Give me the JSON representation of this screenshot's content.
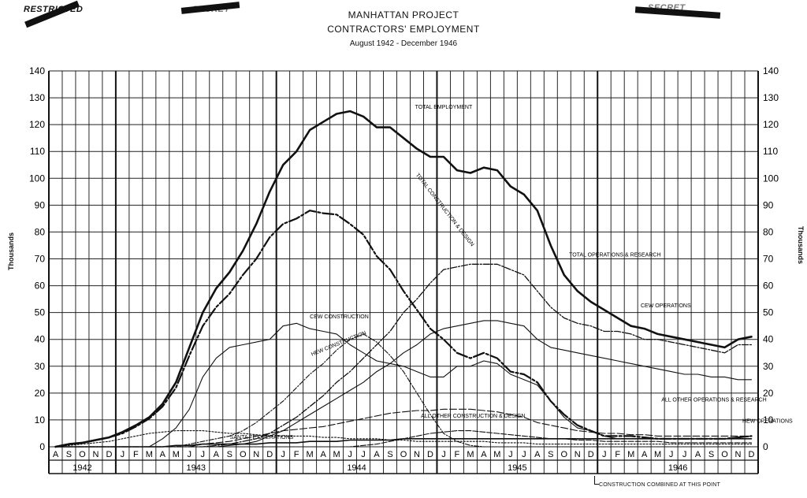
{
  "stamps": {
    "restricted": "RESTRICTED",
    "secret_mid": "SECRET",
    "secret_right": "SECRET"
  },
  "note": "CONSTRUCTION COMBINED AT THIS POINT",
  "chart_data": {
    "type": "line",
    "title": "MANHATTAN PROJECT",
    "subtitle": "CONTRACTORS' EMPLOYMENT",
    "period": "August 1942 - December 1946",
    "ylabel": "Thousands",
    "xlabel": "",
    "ylim": [
      0,
      140
    ],
    "yticks": [
      0,
      10,
      20,
      30,
      40,
      50,
      60,
      70,
      80,
      90,
      100,
      110,
      120,
      130,
      140
    ],
    "grid": true,
    "month_labels": [
      "A",
      "S",
      "O",
      "N",
      "D",
      "J",
      "F",
      "M",
      "A",
      "M",
      "J",
      "J",
      "A",
      "S",
      "O",
      "N",
      "D",
      "J",
      "F",
      "M",
      "A",
      "M",
      "J",
      "J",
      "A",
      "S",
      "O",
      "N",
      "D",
      "J",
      "F",
      "M",
      "A",
      "M",
      "J",
      "J",
      "A",
      "S",
      "O",
      "N",
      "D",
      "J",
      "F",
      "M",
      "A",
      "M",
      "J",
      "J",
      "A",
      "S",
      "O",
      "N",
      "D"
    ],
    "years": [
      {
        "label": "1942",
        "months": 5
      },
      {
        "label": "1943",
        "months": 12
      },
      {
        "label": "1944",
        "months": 12
      },
      {
        "label": "1945",
        "months": 12
      },
      {
        "label": "1946",
        "months": 12
      }
    ],
    "series": [
      {
        "name": "TOTAL EMPLOYMENT",
        "label_at": [
          14.5,
          125
        ],
        "values": [
          0,
          1,
          1.5,
          2.5,
          3.5,
          5.5,
          8,
          11,
          16,
          24,
          37,
          50,
          59,
          65,
          73,
          83,
          95,
          105,
          110,
          118,
          121,
          124,
          125,
          123,
          119,
          119,
          115,
          111,
          108,
          108,
          103,
          102,
          104,
          103,
          97,
          94,
          88,
          75,
          64,
          58,
          54,
          51,
          48,
          45,
          44,
          42,
          41,
          40,
          39,
          38,
          37,
          40,
          41
        ]
      },
      {
        "name": "TOTAL CONSTRUCTION & DESIGN",
        "label_at": [
          14.5,
          87
        ],
        "rotate": 52,
        "values": [
          0,
          1,
          1.5,
          2.5,
          3.5,
          5,
          7.5,
          10.5,
          15,
          22,
          34,
          45,
          52,
          57,
          64,
          70,
          78,
          83,
          85,
          88,
          87,
          86.5,
          83,
          79,
          71,
          66,
          58,
          51,
          44,
          40,
          35,
          33,
          35,
          33,
          28,
          27,
          24,
          17,
          12,
          8,
          6,
          4,
          4,
          4,
          3.5,
          3,
          3,
          3,
          3,
          3,
          3,
          3.5,
          4
        ]
      },
      {
        "name": "TOTAL OPERATIONS & RESEARCH",
        "label_at": [
          20.9,
          70
        ],
        "values": [
          0,
          0,
          0,
          0,
          0,
          0,
          0,
          0,
          0,
          0,
          0,
          0,
          0.5,
          1,
          2,
          3,
          5,
          8,
          11,
          15,
          19,
          24,
          28,
          33,
          38,
          43,
          50,
          55,
          61,
          66,
          67,
          68,
          68,
          68,
          66,
          64,
          58,
          52,
          48,
          46,
          45,
          43,
          43,
          42,
          40,
          40,
          39,
          38,
          37,
          36,
          35,
          38,
          38
        ]
      },
      {
        "name": "CEW OPERATIONS",
        "label_at": [
          22.8,
          51
        ],
        "values": [
          0,
          0,
          0,
          0,
          0,
          0,
          0,
          0,
          0,
          0,
          0,
          0,
          0,
          0.5,
          1,
          2,
          4,
          6,
          9,
          12,
          15,
          18,
          21,
          24,
          28,
          31,
          35,
          38,
          42,
          44,
          45,
          46,
          47,
          47,
          46,
          45,
          40,
          37,
          36,
          35,
          34,
          33,
          32,
          31,
          30,
          29,
          28,
          27,
          27,
          26,
          26,
          25,
          25
        ]
      },
      {
        "name": "CEW CONSTRUCTION",
        "label_at": [
          10.6,
          47
        ],
        "values": [
          0,
          0,
          0,
          0,
          0,
          0,
          0,
          0,
          3,
          7,
          14,
          26,
          33,
          37,
          38,
          39,
          40,
          45,
          46,
          44,
          43,
          42,
          38,
          35,
          32,
          31,
          30,
          28,
          26,
          26,
          30,
          30,
          32,
          31,
          27,
          25,
          23,
          17,
          11,
          7,
          6,
          4,
          3,
          3,
          3,
          3,
          3,
          3,
          3,
          3,
          3,
          3.5,
          4
        ]
      },
      {
        "name": "HEW CONSTRUCTION",
        "label_at": [
          10.6,
          37
        ],
        "rotate": -22,
        "values": [
          0,
          0,
          0,
          0,
          0,
          0,
          0,
          0,
          0,
          0,
          1,
          2,
          3,
          4,
          6,
          9,
          13,
          17,
          22,
          27,
          31,
          36,
          40,
          42,
          39,
          34,
          28,
          20,
          12,
          5,
          2,
          0.5,
          0,
          0,
          0,
          0,
          0,
          0,
          0,
          0,
          0,
          0,
          0,
          0,
          0,
          0,
          0,
          0,
          0,
          0,
          0,
          0,
          0
        ]
      },
      {
        "name": "ALL OTHER OPERATIONS & RESEARCH",
        "label_at": [
          24.6,
          16
        ],
        "values": [
          0,
          0,
          0,
          0,
          0,
          0,
          0,
          0,
          0,
          0,
          0,
          1,
          1.5,
          2,
          3,
          4,
          5,
          6,
          6.5,
          7,
          7.5,
          8.5,
          9.5,
          10.5,
          11.5,
          12.5,
          13,
          13.5,
          13.5,
          14,
          14,
          14,
          13.5,
          13,
          12,
          11,
          9,
          8,
          7,
          6,
          5.5,
          5,
          5,
          4.5,
          4.5,
          4,
          4,
          4,
          4,
          4,
          4,
          4,
          4
        ]
      },
      {
        "name": "HEW OPERATIONS",
        "label_at": [
          26.6,
          8
        ],
        "values": [
          0,
          0,
          0,
          0,
          0,
          0,
          0,
          0,
          0,
          0,
          0,
          0,
          0,
          0,
          0,
          0,
          0,
          0,
          0,
          0,
          0,
          0,
          0,
          0.5,
          1,
          2,
          3,
          4,
          5,
          5.5,
          6,
          6,
          5.5,
          5,
          4.5,
          4,
          3.5,
          3,
          3,
          2.5,
          2.5,
          2,
          2,
          2,
          2,
          2,
          1.5,
          1.5,
          1.5,
          1.5,
          1.5,
          1.5,
          1.5
        ]
      },
      {
        "name": "ALL OTHER CONSTRUCTION & DESIGN",
        "label_at": [
          15.6,
          10
        ],
        "values": [
          0,
          0.5,
          1,
          1.5,
          2,
          3,
          4,
          5,
          5.5,
          6,
          6,
          6,
          5.5,
          5,
          5,
          4.5,
          4,
          4,
          4,
          4,
          3.5,
          3.5,
          3,
          3,
          3,
          2.5,
          2.5,
          2,
          2,
          2,
          2,
          2,
          2,
          1.5,
          1.5,
          1.5,
          1,
          1,
          1,
          1,
          1,
          1,
          1,
          1,
          1,
          1,
          1,
          1,
          1,
          1,
          1,
          1,
          1
        ]
      },
      {
        "name": "SANTA FE OPERATIONS",
        "label_at": [
          7.7,
          2
        ],
        "values": [
          0,
          0,
          0,
          0,
          0,
          0,
          0,
          0,
          0,
          0.5,
          0.5,
          1,
          1,
          1,
          1,
          1,
          1.5,
          1.5,
          1.5,
          2,
          2,
          2,
          2.5,
          2.5,
          2.5,
          2.5,
          3,
          3,
          3,
          3,
          3,
          3,
          3,
          3,
          3,
          3,
          3,
          3,
          3,
          3,
          3,
          3,
          3,
          3,
          3,
          3,
          3,
          3,
          3,
          3,
          3,
          3,
          3
        ]
      }
    ]
  }
}
